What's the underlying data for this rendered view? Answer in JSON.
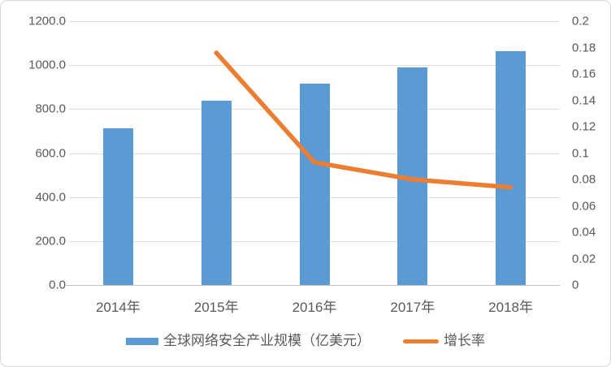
{
  "chart_data": {
    "type": "combo",
    "categories": [
      "2014年",
      "2015年",
      "2016年",
      "2017年",
      "2018年"
    ],
    "series": [
      {
        "name": "全球网络安全产业规模（亿美元）",
        "type": "bar",
        "axis": "left",
        "color": "#5B9BD5",
        "values": [
          713.6,
          839.0,
          916.7,
          989.9,
          1063.5
        ]
      },
      {
        "name": "增长率",
        "type": "line",
        "axis": "right",
        "color": "#ED7D31",
        "values": [
          null,
          0.176,
          0.093,
          0.08,
          0.074
        ]
      }
    ],
    "left_axis": {
      "min": 0,
      "max": 1200,
      "ticks_top_to_bottom": [
        "1200.0",
        "1000.0",
        "800.0",
        "600.0",
        "400.0",
        "200.0",
        "0.0"
      ]
    },
    "right_axis": {
      "min": 0,
      "max": 0.2,
      "ticks_top_to_bottom": [
        "0.2",
        "0.18",
        "0.16",
        "0.14",
        "0.12",
        "0.1",
        "0.08",
        "0.06",
        "0.04",
        "0.02",
        "0"
      ]
    },
    "grid": true,
    "legend_position": "bottom",
    "title": "",
    "colors": {
      "text": "#595959",
      "gridline": "#DEDEDE",
      "axis_line": "#C3C3C3",
      "frame_border": "#D9D9D9",
      "background": "#FFFFFF"
    }
  }
}
